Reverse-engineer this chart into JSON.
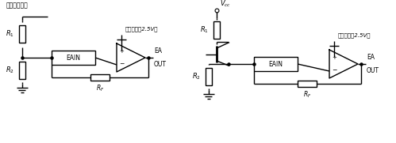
{
  "bg_color": "#ffffff",
  "line_color": "#000000",
  "figsize": [
    4.99,
    1.81
  ],
  "dpi": 100,
  "title1": "来自检测电压",
  "title2": "基准电压（2.5V）",
  "title4": "基准电压（2.5V）",
  "label_R1": "R$_1$",
  "label_R2": "R$_2$",
  "label_RF": "R$_F$",
  "label_EAIN": "EAIN",
  "label_EA": "EA",
  "label_OUT": "OUT",
  "label_Vcc": "$V_{cc}$"
}
